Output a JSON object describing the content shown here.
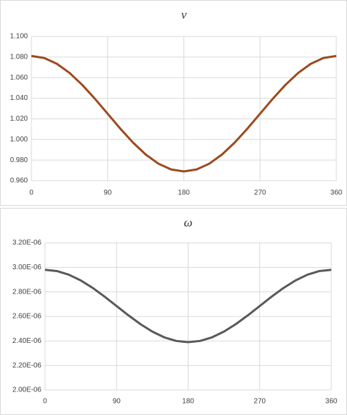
{
  "chart_data": [
    {
      "type": "line",
      "title": "v",
      "color": "#9c4a1c",
      "grid": true,
      "x": [
        0,
        15,
        30,
        45,
        60,
        75,
        90,
        105,
        120,
        135,
        150,
        165,
        180,
        195,
        210,
        225,
        240,
        255,
        270,
        285,
        300,
        315,
        330,
        345,
        360
      ],
      "values": [
        1.081,
        1.0791,
        1.0735,
        1.0646,
        1.053,
        1.0395,
        1.025,
        1.0105,
        0.997,
        0.9854,
        0.9765,
        0.9709,
        0.969,
        0.9709,
        0.9765,
        0.9854,
        0.997,
        1.0105,
        1.025,
        1.0395,
        1.053,
        1.0646,
        1.0735,
        1.0791,
        1.081
      ],
      "xlim": [
        0,
        360
      ],
      "xticks": [
        0,
        90,
        180,
        270,
        360
      ],
      "ylim": [
        0.96,
        1.1
      ],
      "yticks": [
        {
          "value": 0.96,
          "label": "0.960"
        },
        {
          "value": 0.98,
          "label": "0.980"
        },
        {
          "value": 1.0,
          "label": "1.000"
        },
        {
          "value": 1.02,
          "label": "1.020"
        },
        {
          "value": 1.04,
          "label": "1.040"
        },
        {
          "value": 1.06,
          "label": "1.060"
        },
        {
          "value": 1.08,
          "label": "1.080"
        },
        {
          "value": 1.1,
          "label": "1.100"
        }
      ]
    },
    {
      "type": "line",
      "title": "ω",
      "color": "#595959",
      "grid": true,
      "x": [
        0,
        15,
        30,
        45,
        60,
        75,
        90,
        105,
        120,
        135,
        150,
        165,
        180,
        195,
        210,
        225,
        240,
        255,
        270,
        285,
        300,
        315,
        330,
        345,
        360
      ],
      "values": [
        2.98e-06,
        2.97e-06,
        2.9405e-06,
        2.8936e-06,
        2.8325e-06,
        2.7613e-06,
        2.685e-06,
        2.6087e-06,
        2.5375e-06,
        2.4764e-06,
        2.4295e-06,
        2.4001e-06,
        2.39e-06,
        2.4001e-06,
        2.4295e-06,
        2.4764e-06,
        2.5375e-06,
        2.6087e-06,
        2.685e-06,
        2.7613e-06,
        2.8325e-06,
        2.8936e-06,
        2.9405e-06,
        2.97e-06,
        2.98e-06
      ],
      "xlim": [
        0,
        360
      ],
      "xticks": [
        0,
        90,
        180,
        270,
        360
      ],
      "ylim": [
        2e-06,
        3.2e-06
      ],
      "yticks": [
        {
          "value": 2e-06,
          "label": "2.00E-06"
        },
        {
          "value": 2.2e-06,
          "label": "2.20E-06"
        },
        {
          "value": 2.4e-06,
          "label": "2.40E-06"
        },
        {
          "value": 2.6e-06,
          "label": "2.60E-06"
        },
        {
          "value": 2.8e-06,
          "label": "2.80E-06"
        },
        {
          "value": 3e-06,
          "label": "3.00E-06"
        },
        {
          "value": 3.2e-06,
          "label": "3.20E-06"
        }
      ]
    }
  ]
}
